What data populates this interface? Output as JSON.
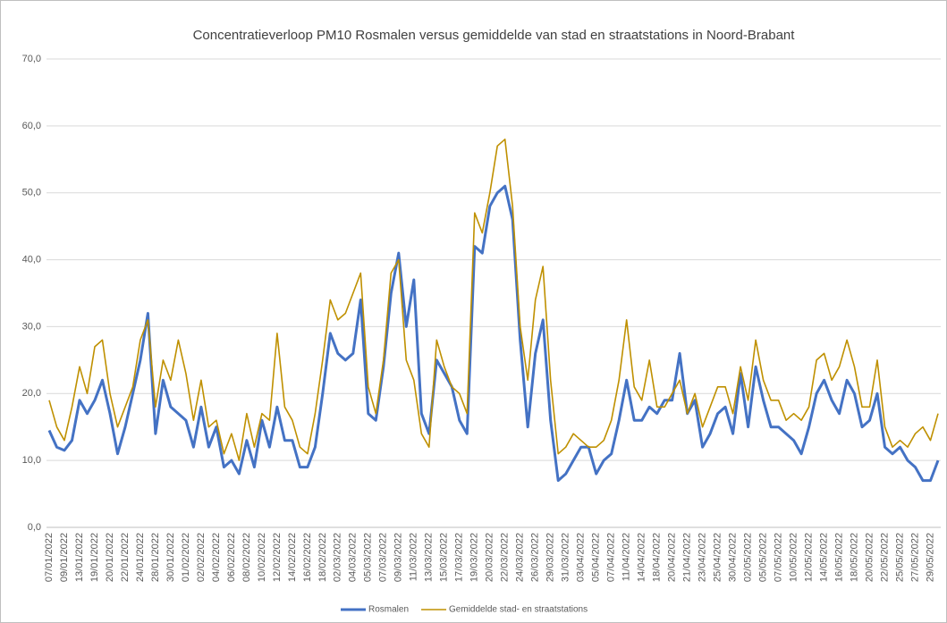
{
  "chart_data": {
    "type": "line",
    "title": "Concentratieverloop PM10 Rosmalen versus gemiddelde van stad en straatstations in Noord-Brabant",
    "categories": [
      "07/01/2022",
      null,
      "09/01/2022",
      null,
      "13/01/2022",
      null,
      "19/01/2022",
      null,
      "20/01/2022",
      null,
      "22/01/2022",
      null,
      "24/01/2022",
      null,
      "28/01/2022",
      null,
      "30/01/2022",
      null,
      "01/02/2022",
      null,
      "02/02/2022",
      null,
      "04/02/2022",
      null,
      "06/02/2022",
      null,
      "08/02/2022",
      null,
      "10/02/2022",
      null,
      "12/02/2022",
      null,
      "14/02/2022",
      null,
      "16/02/2022",
      null,
      "18/02/2022",
      null,
      "02/03/2022",
      null,
      "04/03/2022",
      null,
      "05/03/2022",
      null,
      "07/03/2022",
      null,
      "09/03/2022",
      null,
      "11/03/2022",
      null,
      "13/03/2022",
      null,
      "15/03/2022",
      null,
      "17/03/2022",
      null,
      "19/03/2022",
      null,
      "20/03/2022",
      null,
      "22/03/2022",
      null,
      "24/03/2022",
      null,
      "26/03/2022",
      null,
      "29/03/2022",
      null,
      "31/03/2022",
      null,
      "03/04/2022",
      null,
      "05/04/2022",
      null,
      "07/04/2022",
      null,
      "11/04/2022",
      null,
      "14/04/2022",
      null,
      "18/04/2022",
      null,
      "20/04/2022",
      null,
      "21/04/2022",
      null,
      "23/04/2022",
      null,
      "25/04/2022",
      null,
      "30/04/2022",
      null,
      "02/05/2022",
      null,
      "05/05/2022",
      null,
      "07/05/2022",
      null,
      "10/05/2022",
      null,
      "12/05/2022",
      null,
      "14/05/2022",
      null,
      "16/05/2022",
      null,
      "18/05/2022",
      null,
      "20/05/2022",
      null,
      "22/05/2022",
      null,
      "25/05/2022",
      null,
      "27/05/2022",
      null,
      "29/05/2022",
      null
    ],
    "series": [
      {
        "name": "Rosmalen",
        "color": "#4472c4",
        "values": [
          14.5,
          12,
          11.5,
          13,
          19,
          17,
          19,
          22,
          17,
          11,
          15,
          20,
          25,
          32,
          14,
          22,
          18,
          17,
          16,
          12,
          18,
          12,
          15,
          9,
          10,
          8,
          13,
          9,
          16,
          12,
          18,
          13,
          13,
          9,
          9,
          12,
          20,
          29,
          26,
          25,
          26,
          34,
          17,
          16,
          24,
          35,
          41,
          30,
          37,
          17,
          14,
          25,
          23,
          21,
          16,
          14,
          42,
          41,
          48,
          50,
          51,
          46,
          28,
          15,
          26,
          31,
          16,
          7,
          8,
          10,
          12,
          12,
          8,
          10,
          11,
          16,
          22,
          16,
          16,
          18,
          17,
          19,
          19,
          26,
          17,
          19,
          12,
          14,
          17,
          18,
          14,
          23,
          15,
          24,
          19,
          15,
          15,
          14,
          13,
          11,
          15,
          20,
          22,
          19,
          17,
          22,
          20,
          15,
          16,
          20,
          12,
          11,
          12,
          10,
          9,
          7,
          7,
          10
        ]
      },
      {
        "name": "Gemiddelde stad- en straatstations",
        "color": "#bf9000",
        "values": [
          19,
          15,
          13,
          18,
          24,
          20,
          27,
          28,
          20,
          15,
          18,
          21,
          28,
          31,
          18,
          25,
          22,
          28,
          23,
          16,
          22,
          15,
          16,
          11,
          14,
          10,
          17,
          12,
          17,
          16,
          29,
          18,
          16,
          12,
          11,
          17,
          25,
          34,
          31,
          32,
          35,
          38,
          21,
          17,
          25,
          38,
          40,
          25,
          22,
          14,
          12,
          28,
          24,
          21,
          20,
          17,
          47,
          44,
          50,
          57,
          58,
          48,
          30,
          22,
          34,
          39,
          22,
          11,
          12,
          14,
          13,
          12,
          12,
          13,
          16,
          22,
          31,
          21,
          19,
          25,
          18,
          18,
          20,
          22,
          17,
          20,
          15,
          18,
          21,
          21,
          17,
          24,
          19,
          28,
          22,
          19,
          19,
          16,
          17,
          16,
          18,
          25,
          26,
          22,
          24,
          28,
          24,
          18,
          18,
          25,
          15,
          12,
          13,
          12,
          14,
          15,
          13,
          17
        ]
      }
    ],
    "ylim": [
      0,
      70
    ],
    "yticks": [
      {
        "value": 0,
        "label": "0,0"
      },
      {
        "value": 10,
        "label": "10,0"
      },
      {
        "value": 20,
        "label": "20,0"
      },
      {
        "value": 30,
        "label": "30,0"
      },
      {
        "value": 40,
        "label": "40,0"
      },
      {
        "value": 50,
        "label": "50,0"
      },
      {
        "value": 60,
        "label": "60,0"
      },
      {
        "value": 70,
        "label": "70,0"
      }
    ],
    "grid": true,
    "legend": "bottom"
  }
}
